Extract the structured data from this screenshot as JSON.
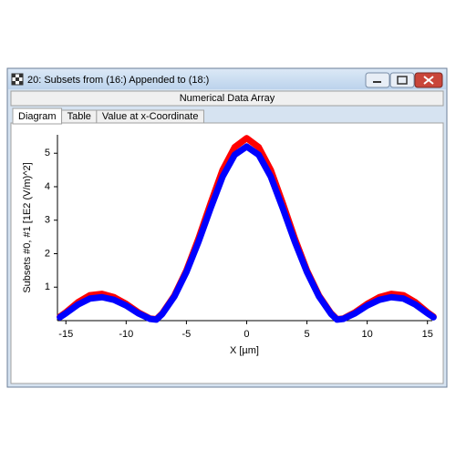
{
  "window": {
    "title": "20: Subsets from (16:) Appended to (18:)",
    "header": "Numerical Data Array"
  },
  "tabs": [
    "Diagram",
    "Table",
    "Value at x-Coordinate"
  ],
  "chart_data": {
    "type": "line",
    "xlabel": "X [µm]",
    "ylabel": "Subsets #0, #1 [1E2 (V/m)^2]",
    "x": [
      -15.5,
      -15,
      -14,
      -13,
      -12,
      -11,
      -10,
      -9,
      -8,
      -7.5,
      -7,
      -6,
      -5,
      -4,
      -3,
      -2,
      -1,
      0,
      1,
      2,
      3,
      4,
      5,
      6,
      7,
      7.5,
      8,
      9,
      10,
      11,
      12,
      13,
      14,
      15,
      15.5
    ],
    "series": [
      {
        "name": "Subset #0",
        "color": "#ff0000",
        "values": [
          0.12,
          0.25,
          0.55,
          0.76,
          0.8,
          0.7,
          0.5,
          0.25,
          0.06,
          0.04,
          0.22,
          0.75,
          1.5,
          2.45,
          3.5,
          4.5,
          5.18,
          5.45,
          5.18,
          4.5,
          3.5,
          2.45,
          1.5,
          0.75,
          0.22,
          0.04,
          0.06,
          0.25,
          0.5,
          0.7,
          0.8,
          0.76,
          0.55,
          0.25,
          0.12
        ]
      },
      {
        "name": "Subset #1",
        "color": "#0000ff",
        "values": [
          0.1,
          0.22,
          0.48,
          0.66,
          0.7,
          0.62,
          0.45,
          0.22,
          0.05,
          0.03,
          0.2,
          0.72,
          1.45,
          2.35,
          3.35,
          4.3,
          4.95,
          5.2,
          4.95,
          4.3,
          3.35,
          2.35,
          1.45,
          0.72,
          0.2,
          0.03,
          0.05,
          0.22,
          0.45,
          0.62,
          0.7,
          0.66,
          0.48,
          0.22,
          0.1
        ]
      }
    ],
    "xlim": [
      -15.7,
      15.4
    ],
    "ylim": [
      0,
      5.55
    ],
    "xticks": [
      -15,
      -10,
      -5,
      0,
      5,
      10,
      15
    ],
    "yticks": [
      1,
      2,
      3,
      4,
      5
    ]
  }
}
